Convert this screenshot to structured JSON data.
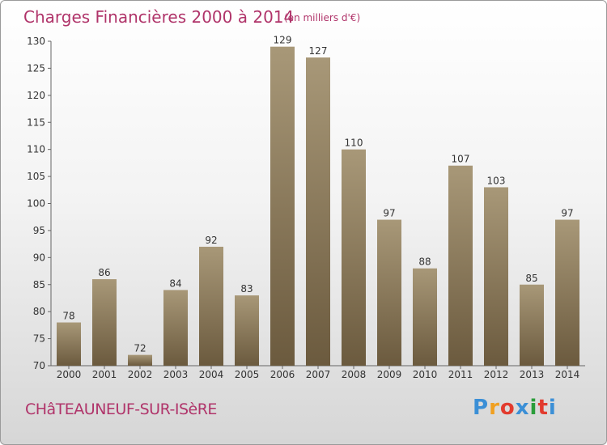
{
  "header": {
    "title": "Charges Financières 2000 à 2014",
    "unit": "(en milliers d'€)"
  },
  "footer": {
    "commune": "CHâTEAUNEUF-SUR-ISèRE",
    "brand_letters": [
      "P",
      "r",
      "o",
      "x",
      "i",
      "t",
      "i"
    ],
    "brand_colors": [
      "#3b8fd6",
      "#f0a020",
      "#e23b2e",
      "#3b8fd6",
      "#2a9d3a",
      "#e23b2e",
      "#3b8fd6"
    ]
  },
  "colors": {
    "title": "#b0346a",
    "bar_light": "#a89878",
    "bar_dark": "#6b5a3e"
  },
  "chart_data": {
    "type": "bar",
    "title": "Charges Financières 2000 à 2014",
    "subtitle": "(en milliers d'€)",
    "xlabel": "",
    "ylabel": "",
    "categories": [
      "2000",
      "2001",
      "2002",
      "2003",
      "2004",
      "2005",
      "2006",
      "2007",
      "2008",
      "2009",
      "2010",
      "2011",
      "2012",
      "2013",
      "2014"
    ],
    "values": [
      78,
      86,
      72,
      84,
      92,
      83,
      129,
      127,
      110,
      97,
      88,
      107,
      103,
      85,
      97
    ],
    "ylim": [
      70,
      130
    ],
    "yticks": [
      70,
      75,
      80,
      85,
      90,
      95,
      100,
      105,
      110,
      115,
      120,
      125,
      130
    ],
    "grid": false,
    "legend": "none"
  }
}
